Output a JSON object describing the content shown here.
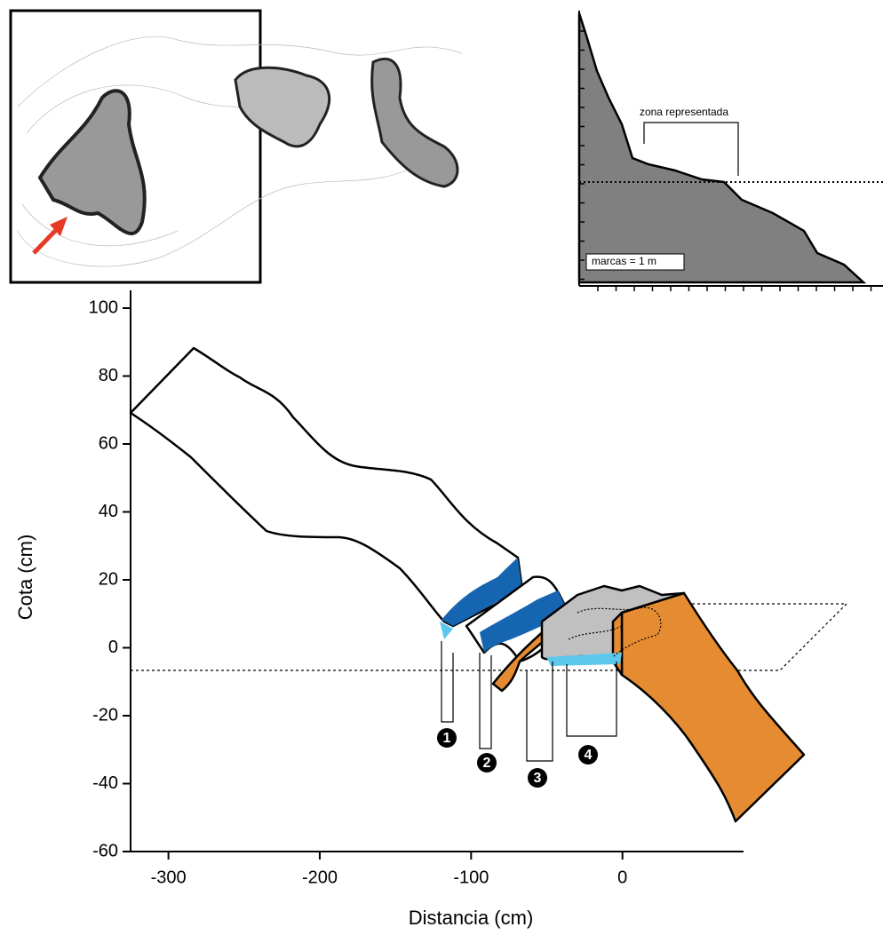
{
  "chart_data": {
    "type": "profile",
    "xlabel": "Distancia (cm)",
    "ylabel": "Cota (cm)",
    "xlim": [
      -325,
      80
    ],
    "ylim": [
      -60,
      100
    ],
    "xticks": [
      -300,
      -200,
      -100,
      0
    ],
    "yticks": [
      -60,
      -40,
      -20,
      0,
      20,
      40,
      60,
      80,
      100
    ],
    "annotations": [
      "1",
      "2",
      "3",
      "4"
    ],
    "inset": {
      "label": "zona representada",
      "scale_note": "marcas = 1 m"
    }
  }
}
